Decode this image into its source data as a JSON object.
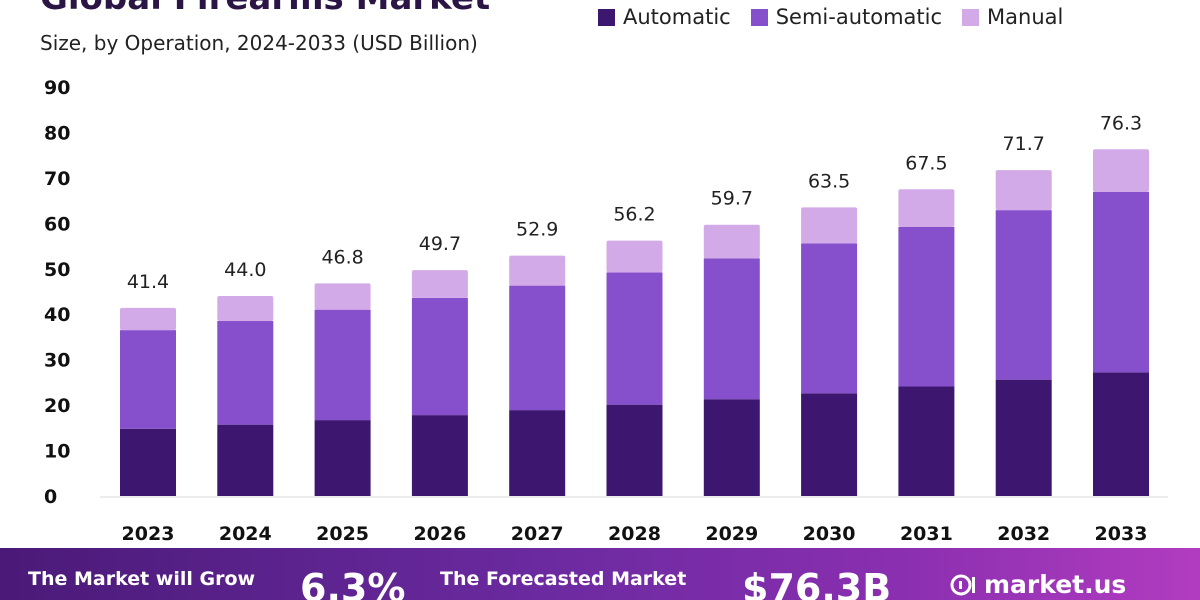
{
  "header": {
    "title": "Global Firearms Market",
    "subtitle": "Size, by Operation, 2024-2033 (USD Billion)"
  },
  "legend": [
    {
      "label": "Automatic",
      "color": "#3d1670"
    },
    {
      "label": "Semi-automatic",
      "color": "#8650cc"
    },
    {
      "label": "Manual",
      "color": "#d3aae8"
    }
  ],
  "chart_data": {
    "type": "bar",
    "stacked": true,
    "title": "Global Firearms Market",
    "subtitle": "Size, by Operation, 2024-2033 (USD Billion)",
    "categories": [
      "2023",
      "2024",
      "2025",
      "2026",
      "2027",
      "2028",
      "2029",
      "2030",
      "2031",
      "2032",
      "2033"
    ],
    "series": [
      {
        "name": "Automatic",
        "color": "#3d1670",
        "values": [
          14.8,
          15.7,
          16.7,
          17.8,
          18.9,
          20.1,
          21.3,
          22.6,
          24.1,
          25.6,
          27.2
        ]
      },
      {
        "name": "Semi-automatic",
        "color": "#8650cc",
        "values": [
          21.7,
          22.8,
          24.3,
          25.8,
          27.4,
          29.1,
          31.0,
          33.0,
          35.1,
          37.3,
          39.7
        ]
      },
      {
        "name": "Manual",
        "color": "#d3aae8",
        "values": [
          4.9,
          5.5,
          5.8,
          6.1,
          6.6,
          7.0,
          7.4,
          7.9,
          8.3,
          8.8,
          9.4
        ]
      }
    ],
    "totals": [
      "41.4",
      "44.0",
      "46.8",
      "49.7",
      "52.9",
      "56.2",
      "59.7",
      "63.5",
      "67.5",
      "71.7",
      "76.3"
    ],
    "yticks": [
      "0",
      "10",
      "20",
      "30",
      "40",
      "50",
      "60",
      "70",
      "80",
      "90"
    ],
    "ylim": [
      0,
      90
    ],
    "grid": false,
    "legend_position": "top-right"
  },
  "footer": {
    "grow_label": "The Market will Grow",
    "cagr": "6.3%",
    "forecast_label": "The Forecasted Market",
    "forecast_value": "$76.3B",
    "brand": "market.us"
  }
}
